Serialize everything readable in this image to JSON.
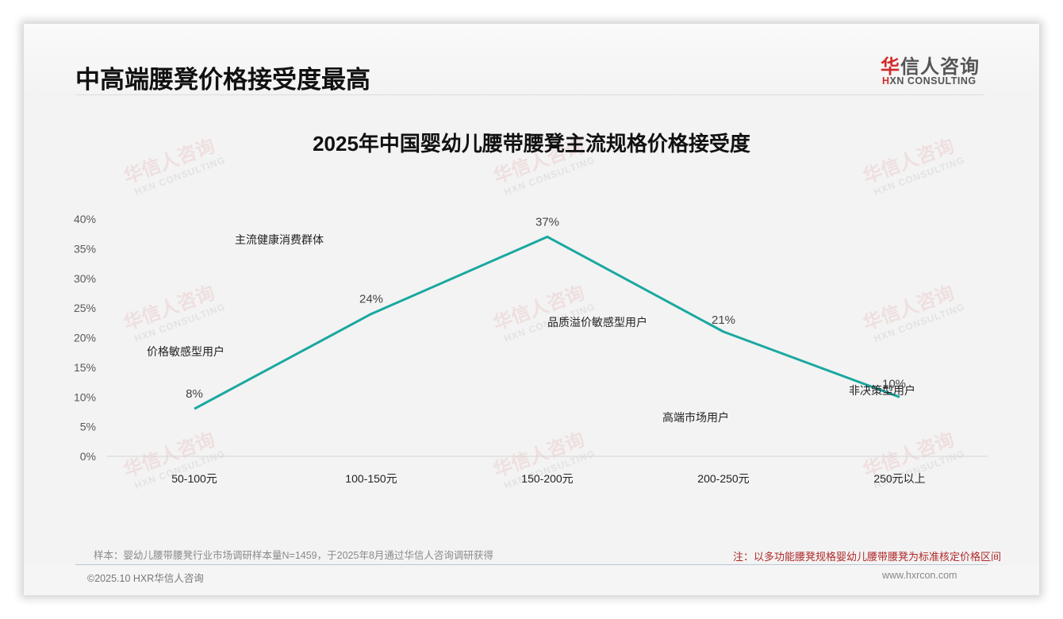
{
  "header": {
    "page_title": "中高端腰凳价格接受度最高",
    "logo": {
      "cn_red": "华",
      "cn_rest": "信人咨询",
      "en_red": "H",
      "en_rest": "XN CONSULTING"
    }
  },
  "watermark": {
    "cn": "华信人咨询",
    "en": "HXN CONSULTING"
  },
  "chart_data": {
    "type": "line",
    "title": "2025年中国婴幼儿腰带腰凳主流规格价格接受度",
    "xlabel": "",
    "ylabel": "",
    "categories": [
      "50-100元",
      "100-150元",
      "150-200元",
      "200-250元",
      "250元以上"
    ],
    "series": [
      {
        "name": "价格接受度",
        "values": [
          8,
          24,
          37,
          21,
          10
        ],
        "color": "#1aa8a0"
      }
    ],
    "data_labels": [
      "8%",
      "24%",
      "37%",
      "21%",
      "10%"
    ],
    "yticks": [
      "0%",
      "5%",
      "10%",
      "15%",
      "20%",
      "25%",
      "30%",
      "35%",
      "40%"
    ],
    "ylim": [
      0,
      40
    ],
    "grid": false,
    "legend": "none",
    "annotations": [
      {
        "text": "价格敏感型用户",
        "category": "50-100元"
      },
      {
        "text": "主流健康消费群体",
        "category": "100-150元"
      },
      {
        "text": "品质溢价敏感型用户",
        "category": "150-200元"
      },
      {
        "text": "高端市场用户",
        "category": "200-250元"
      },
      {
        "text": "非决策型用户",
        "category": "250元以上"
      }
    ]
  },
  "footer": {
    "sample_note": "样本：婴幼儿腰带腰凳行业市场调研样本量N=1459，于2025年8月通过华信人咨询调研获得",
    "method_note": "注：以多功能腰凳规格婴幼儿腰带腰凳为标准核定价格区间",
    "copyright": "©2025.10 HXR华信人咨询",
    "website": "www.hxrcon.com"
  }
}
